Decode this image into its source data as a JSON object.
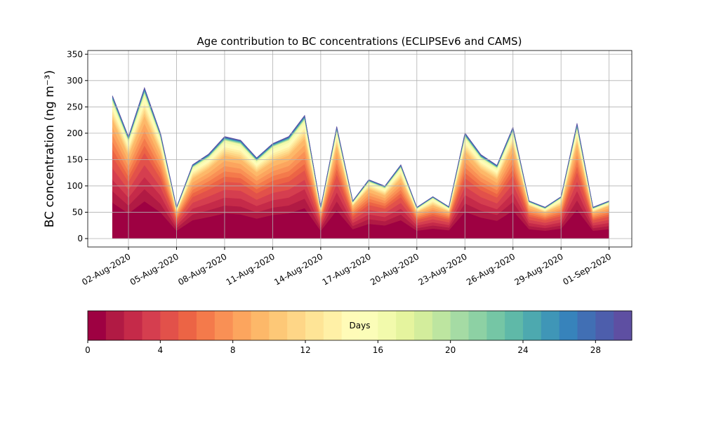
{
  "chart_data": {
    "type": "stacked_area",
    "title": "Age contribution to BC concentrations (ECLIPSEv6 and CAMS)",
    "y_label": "BC concentration (ng m⁻³)",
    "x": [
      "2020-08-01",
      "2020-08-02",
      "2020-08-03",
      "2020-08-04",
      "2020-08-05",
      "2020-08-06",
      "2020-08-07",
      "2020-08-08",
      "2020-08-09",
      "2020-08-10",
      "2020-08-11",
      "2020-08-12",
      "2020-08-13",
      "2020-08-14",
      "2020-08-15",
      "2020-08-16",
      "2020-08-17",
      "2020-08-18",
      "2020-08-19",
      "2020-08-20",
      "2020-08-21",
      "2020-08-22",
      "2020-08-23",
      "2020-08-24",
      "2020-08-25",
      "2020-08-26",
      "2020-08-27",
      "2020-08-28",
      "2020-08-29",
      "2020-08-30",
      "2020-08-31",
      "2020-09-01"
    ],
    "series": [
      {
        "color": "#9e0142",
        "values": [
          68,
          48,
          71,
          50,
          15,
          35,
          41,
          48,
          46,
          38,
          45,
          48,
          58,
          15,
          54,
          18,
          28,
          25,
          35,
          15,
          19,
          16,
          51,
          40,
          34,
          53,
          18,
          15,
          19,
          55,
          15,
          18
        ]
      },
      {
        "color": "#b11a44",
        "values": [
          22,
          15,
          23,
          16,
          5,
          11,
          13,
          15,
          15,
          12,
          14,
          15,
          18,
          5,
          17,
          6,
          9,
          8,
          11,
          5,
          6,
          5,
          16,
          13,
          11,
          17,
          6,
          5,
          6,
          18,
          5,
          6
        ]
      },
      {
        "color": "#c52a49",
        "values": [
          22,
          15,
          23,
          16,
          5,
          11,
          13,
          15,
          15,
          12,
          14,
          15,
          18,
          5,
          17,
          6,
          9,
          8,
          11,
          5,
          6,
          5,
          16,
          13,
          11,
          17,
          6,
          5,
          6,
          18,
          5,
          6
        ]
      },
      {
        "color": "#d53e4f",
        "values": [
          22,
          15,
          23,
          16,
          5,
          11,
          13,
          15,
          15,
          12,
          14,
          15,
          18,
          5,
          17,
          6,
          9,
          8,
          11,
          5,
          6,
          5,
          16,
          13,
          11,
          17,
          6,
          5,
          6,
          18,
          5,
          6
        ]
      },
      {
        "color": "#e2514a",
        "values": [
          22,
          15,
          23,
          16,
          5,
          11,
          13,
          15,
          15,
          12,
          14,
          15,
          18,
          5,
          17,
          6,
          9,
          8,
          11,
          5,
          6,
          5,
          16,
          13,
          11,
          17,
          6,
          5,
          6,
          18,
          5,
          6
        ]
      },
      {
        "color": "#ec6445",
        "values": [
          14,
          10,
          14,
          10,
          3,
          7,
          8,
          10,
          9,
          8,
          9,
          10,
          12,
          3,
          11,
          4,
          6,
          5,
          7,
          3,
          4,
          3,
          10,
          8,
          7,
          11,
          4,
          3,
          4,
          11,
          3,
          4
        ]
      },
      {
        "color": "#f47a4b",
        "values": [
          14,
          10,
          14,
          10,
          3,
          7,
          8,
          10,
          9,
          8,
          9,
          10,
          12,
          3,
          11,
          4,
          6,
          5,
          7,
          3,
          4,
          3,
          10,
          8,
          7,
          11,
          4,
          3,
          4,
          11,
          3,
          4
        ]
      },
      {
        "color": "#f99055",
        "values": [
          14,
          10,
          14,
          10,
          3,
          7,
          8,
          10,
          9,
          8,
          9,
          10,
          12,
          3,
          11,
          4,
          6,
          5,
          7,
          3,
          4,
          3,
          10,
          8,
          7,
          11,
          4,
          3,
          4,
          11,
          3,
          4
        ]
      },
      {
        "color": "#fca55e",
        "values": [
          14,
          10,
          14,
          10,
          3,
          7,
          8,
          10,
          9,
          8,
          9,
          10,
          12,
          3,
          11,
          4,
          6,
          5,
          7,
          3,
          4,
          3,
          10,
          8,
          7,
          11,
          4,
          3,
          4,
          11,
          3,
          4
        ]
      },
      {
        "color": "#fdb869",
        "values": [
          14,
          10,
          14,
          10,
          3,
          7,
          8,
          10,
          9,
          8,
          9,
          10,
          12,
          3,
          11,
          4,
          6,
          5,
          7,
          3,
          4,
          3,
          10,
          8,
          7,
          11,
          4,
          3,
          4,
          11,
          3,
          4
        ]
      },
      {
        "color": "#fdc877",
        "values": [
          5,
          4,
          6,
          4,
          1,
          3,
          3,
          4,
          4,
          3,
          4,
          4,
          5,
          1,
          4,
          1,
          2,
          2,
          3,
          1,
          2,
          1,
          4,
          3,
          3,
          4,
          1,
          1,
          2,
          4,
          1,
          1
        ]
      },
      {
        "color": "#fed687",
        "values": [
          5,
          4,
          6,
          4,
          1,
          3,
          3,
          4,
          4,
          3,
          4,
          4,
          5,
          1,
          4,
          1,
          2,
          2,
          3,
          1,
          2,
          1,
          4,
          3,
          3,
          4,
          1,
          1,
          2,
          4,
          1,
          1
        ]
      },
      {
        "color": "#fee496",
        "values": [
          5,
          4,
          6,
          4,
          1,
          3,
          3,
          4,
          4,
          3,
          4,
          4,
          5,
          1,
          4,
          1,
          2,
          2,
          3,
          1,
          2,
          1,
          4,
          3,
          3,
          4,
          1,
          1,
          2,
          4,
          1,
          1
        ]
      },
      {
        "color": "#fff0a6",
        "values": [
          5,
          4,
          6,
          4,
          1,
          3,
          3,
          4,
          4,
          3,
          4,
          4,
          5,
          1,
          4,
          1,
          2,
          2,
          3,
          1,
          2,
          1,
          4,
          3,
          3,
          4,
          1,
          1,
          2,
          4,
          1,
          1
        ]
      },
      {
        "color": "#fffbb8",
        "values": [
          5,
          4,
          6,
          4,
          1,
          3,
          3,
          4,
          4,
          3,
          4,
          4,
          5,
          1,
          4,
          1,
          2,
          2,
          3,
          1,
          2,
          1,
          4,
          3,
          3,
          4,
          1,
          1,
          2,
          4,
          1,
          1
        ]
      },
      {
        "color": "#fbfdb8",
        "values": [
          5,
          4,
          6,
          4,
          1,
          3,
          3,
          4,
          4,
          3,
          4,
          4,
          5,
          1,
          4,
          1,
          2,
          2,
          3,
          1,
          2,
          1,
          4,
          3,
          3,
          4,
          1,
          1,
          2,
          4,
          1,
          1
        ]
      },
      {
        "color": "#f2faac",
        "values": [
          5,
          4,
          6,
          4,
          1,
          3,
          3,
          4,
          4,
          3,
          4,
          4,
          5,
          1,
          4,
          1,
          2,
          2,
          3,
          1,
          2,
          1,
          4,
          3,
          3,
          4,
          1,
          1,
          2,
          4,
          1,
          1
        ]
      },
      {
        "color": "#e5f49e",
        "values": [
          0.8,
          0.6,
          0.9,
          0.6,
          0.2,
          0.4,
          0.5,
          0.6,
          0.6,
          0.5,
          0.5,
          0.6,
          0.7,
          0.2,
          0.6,
          0.2,
          0.3,
          0.3,
          0.4,
          0.2,
          0.2,
          0.2,
          0.6,
          0.5,
          0.4,
          0.6,
          0.2,
          0.2,
          0.2,
          0.7,
          0.2,
          0.2
        ]
      },
      {
        "color": "#d3ed9c",
        "values": [
          0.8,
          0.6,
          0.9,
          0.6,
          0.2,
          0.4,
          0.5,
          0.6,
          0.6,
          0.5,
          0.5,
          0.6,
          0.7,
          0.2,
          0.6,
          0.2,
          0.3,
          0.3,
          0.4,
          0.2,
          0.2,
          0.2,
          0.6,
          0.5,
          0.4,
          0.6,
          0.2,
          0.2,
          0.2,
          0.7,
          0.2,
          0.2
        ]
      },
      {
        "color": "#bde5a0",
        "values": [
          0.8,
          0.6,
          0.9,
          0.6,
          0.2,
          0.4,
          0.5,
          0.6,
          0.6,
          0.5,
          0.5,
          0.6,
          0.7,
          0.2,
          0.6,
          0.2,
          0.3,
          0.3,
          0.4,
          0.2,
          0.2,
          0.2,
          0.6,
          0.5,
          0.4,
          0.6,
          0.2,
          0.2,
          0.2,
          0.7,
          0.2,
          0.2
        ]
      },
      {
        "color": "#a5dba4",
        "values": [
          0.8,
          0.6,
          0.9,
          0.6,
          0.2,
          0.4,
          0.5,
          0.6,
          0.6,
          0.5,
          0.5,
          0.6,
          0.7,
          0.2,
          0.6,
          0.2,
          0.3,
          0.3,
          0.4,
          0.2,
          0.2,
          0.2,
          0.6,
          0.5,
          0.4,
          0.6,
          0.2,
          0.2,
          0.2,
          0.7,
          0.2,
          0.2
        ]
      },
      {
        "color": "#8dd1a4",
        "values": [
          0.8,
          0.6,
          0.9,
          0.6,
          0.2,
          0.4,
          0.5,
          0.6,
          0.6,
          0.5,
          0.5,
          0.6,
          0.7,
          0.2,
          0.6,
          0.2,
          0.3,
          0.3,
          0.4,
          0.2,
          0.2,
          0.2,
          0.6,
          0.5,
          0.4,
          0.6,
          0.2,
          0.2,
          0.2,
          0.7,
          0.2,
          0.2
        ]
      },
      {
        "color": "#75c6a5",
        "values": [
          0.8,
          0.6,
          0.9,
          0.6,
          0.2,
          0.4,
          0.5,
          0.6,
          0.6,
          0.5,
          0.5,
          0.6,
          0.7,
          0.2,
          0.6,
          0.2,
          0.3,
          0.3,
          0.4,
          0.2,
          0.2,
          0.2,
          0.6,
          0.5,
          0.4,
          0.6,
          0.2,
          0.2,
          0.2,
          0.7,
          0.2,
          0.2
        ]
      },
      {
        "color": "#5fb9a8",
        "values": [
          0.8,
          0.6,
          0.9,
          0.6,
          0.2,
          0.4,
          0.5,
          0.6,
          0.6,
          0.5,
          0.5,
          0.6,
          0.7,
          0.2,
          0.6,
          0.2,
          0.3,
          0.3,
          0.4,
          0.2,
          0.2,
          0.2,
          0.6,
          0.5,
          0.4,
          0.6,
          0.2,
          0.2,
          0.2,
          0.7,
          0.2,
          0.2
        ]
      },
      {
        "color": "#4da9af",
        "values": [
          0.8,
          0.6,
          0.9,
          0.6,
          0.2,
          0.4,
          0.5,
          0.6,
          0.6,
          0.5,
          0.5,
          0.6,
          0.7,
          0.2,
          0.6,
          0.2,
          0.3,
          0.3,
          0.4,
          0.2,
          0.2,
          0.2,
          0.6,
          0.5,
          0.4,
          0.6,
          0.2,
          0.2,
          0.2,
          0.7,
          0.2,
          0.2
        ]
      },
      {
        "color": "#3f96b7",
        "values": [
          0.8,
          0.6,
          0.9,
          0.6,
          0.2,
          0.4,
          0.5,
          0.6,
          0.6,
          0.5,
          0.5,
          0.6,
          0.7,
          0.2,
          0.6,
          0.2,
          0.3,
          0.3,
          0.4,
          0.2,
          0.2,
          0.2,
          0.6,
          0.5,
          0.4,
          0.6,
          0.2,
          0.2,
          0.2,
          0.7,
          0.2,
          0.2
        ]
      },
      {
        "color": "#3783bb",
        "values": [
          0.8,
          0.6,
          0.9,
          0.6,
          0.2,
          0.4,
          0.5,
          0.6,
          0.6,
          0.5,
          0.5,
          0.6,
          0.7,
          0.2,
          0.6,
          0.2,
          0.3,
          0.3,
          0.4,
          0.2,
          0.2,
          0.2,
          0.6,
          0.5,
          0.4,
          0.6,
          0.2,
          0.2,
          0.2,
          0.7,
          0.2,
          0.2
        ]
      },
      {
        "color": "#416fb4",
        "values": [
          0.8,
          0.6,
          0.9,
          0.6,
          0.2,
          0.4,
          0.5,
          0.6,
          0.6,
          0.5,
          0.5,
          0.6,
          0.7,
          0.2,
          0.6,
          0.2,
          0.3,
          0.3,
          0.4,
          0.2,
          0.2,
          0.2,
          0.6,
          0.5,
          0.4,
          0.6,
          0.2,
          0.2,
          0.2,
          0.7,
          0.2,
          0.2
        ]
      },
      {
        "color": "#4d5eac",
        "values": [
          0.8,
          0.6,
          0.9,
          0.6,
          0.2,
          0.4,
          0.5,
          0.6,
          0.6,
          0.5,
          0.5,
          0.6,
          0.7,
          0.2,
          0.6,
          0.2,
          0.3,
          0.3,
          0.4,
          0.2,
          0.2,
          0.2,
          0.6,
          0.5,
          0.4,
          0.6,
          0.2,
          0.2,
          0.2,
          0.7,
          0.2,
          0.2
        ]
      },
      {
        "color": "#5e4fa2",
        "values": [
          0.8,
          0.6,
          0.9,
          0.6,
          0.2,
          0.4,
          0.5,
          0.6,
          0.6,
          0.5,
          0.5,
          0.6,
          0.7,
          0.2,
          0.6,
          0.2,
          0.3,
          0.3,
          0.4,
          0.2,
          0.2,
          0.2,
          0.6,
          0.5,
          0.4,
          0.6,
          0.2,
          0.2,
          0.2,
          0.7,
          0.2,
          0.2
        ]
      }
    ],
    "xlim": [
      "2020-07-30T11:00Z",
      "2020-09-02T10:00Z"
    ],
    "xticks": [
      {
        "value": "2020-08-02",
        "label": "02-Aug-2020"
      },
      {
        "value": "2020-08-05",
        "label": "05-Aug-2020"
      },
      {
        "value": "2020-08-08",
        "label": "08-Aug-2020"
      },
      {
        "value": "2020-08-11",
        "label": "11-Aug-2020"
      },
      {
        "value": "2020-08-14",
        "label": "14-Aug-2020"
      },
      {
        "value": "2020-08-17",
        "label": "17-Aug-2020"
      },
      {
        "value": "2020-08-20",
        "label": "20-Aug-2020"
      },
      {
        "value": "2020-08-23",
        "label": "23-Aug-2020"
      },
      {
        "value": "2020-08-26",
        "label": "26-Aug-2020"
      },
      {
        "value": "2020-08-29",
        "label": "29-Aug-2020"
      },
      {
        "value": "2020-09-01",
        "label": "01-Sep-2020"
      }
    ],
    "ylim": [
      -16,
      357
    ],
    "yticks": [
      0,
      50,
      100,
      150,
      200,
      250,
      300,
      350
    ],
    "grid": true,
    "colorbar": {
      "label": "Days",
      "lim": [
        0,
        30
      ],
      "ticks": [
        0,
        4,
        8,
        12,
        16,
        20,
        24,
        28
      ]
    }
  }
}
